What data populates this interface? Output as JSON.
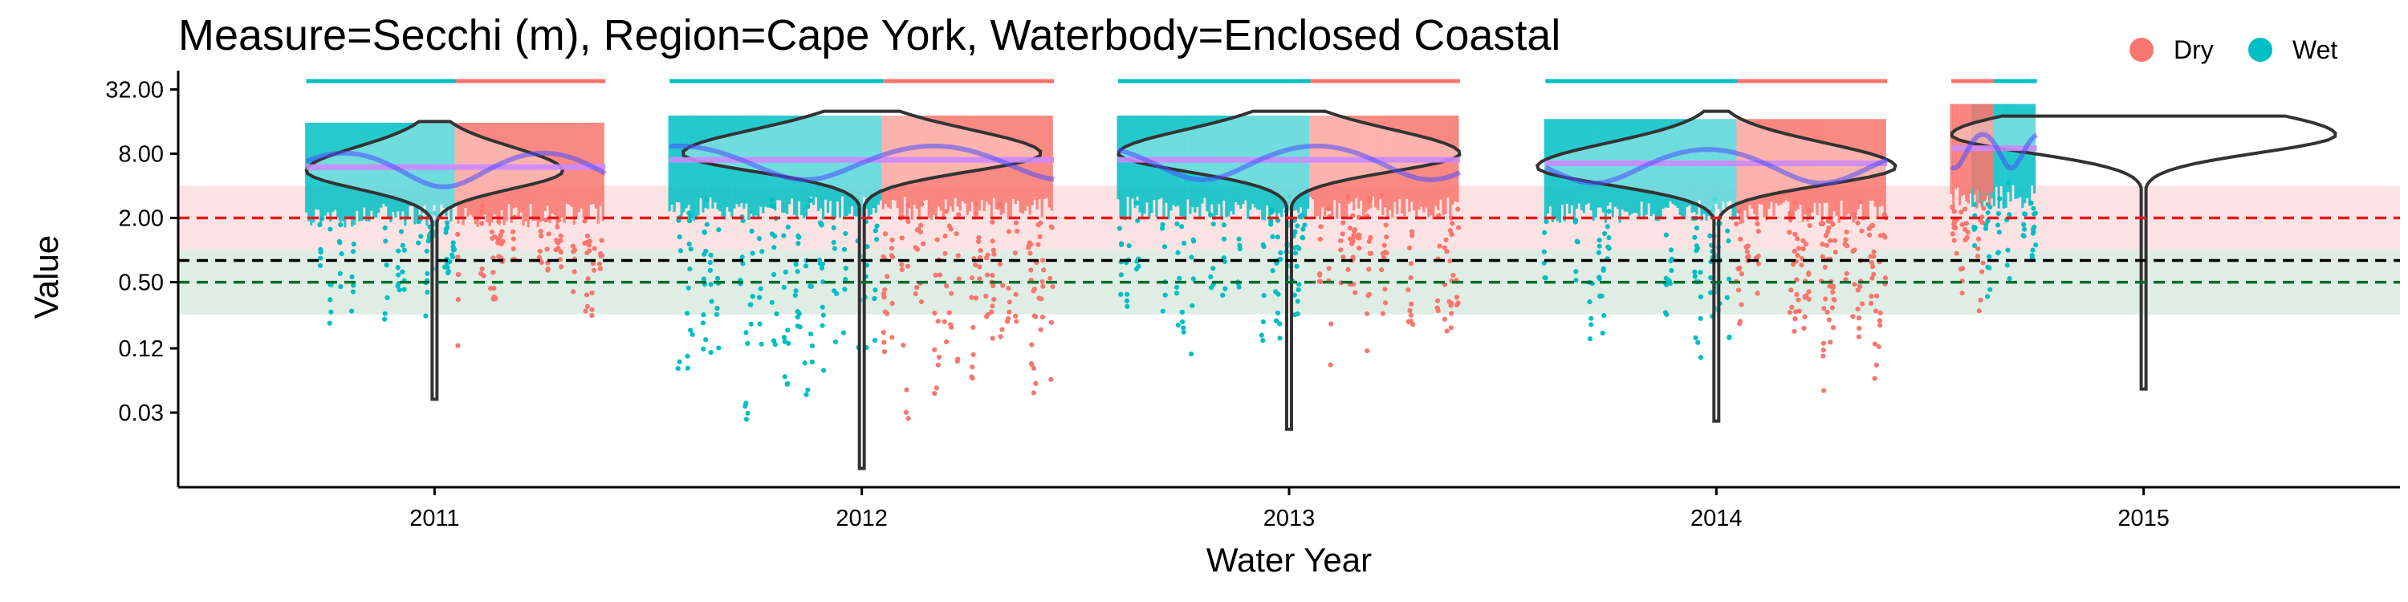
{
  "chart_data": {
    "type": "scatter",
    "title": "Measure=Secchi (m), Region=Cape York, Waterbody=Enclosed Coastal",
    "xlabel": "Water Year",
    "ylabel": "Value",
    "y_scale": "log2",
    "ylim": [
      0.006,
      48
    ],
    "xlim": [
      2010.4,
      2015.6
    ],
    "x_ticks": [
      2011,
      2012,
      2013,
      2014,
      2015
    ],
    "x_tick_labels": [
      "2011",
      "2012",
      "2013",
      "2014",
      "2015"
    ],
    "y_ticks": [
      0.03,
      0.12,
      0.5,
      2,
      8,
      32
    ],
    "y_tick_labels": [
      "0.03",
      "0.12",
      "0.50",
      "2.00",
      "8.00",
      "32.00"
    ],
    "grid": false,
    "legend": {
      "placement": "top-right",
      "entries": [
        {
          "label": "Dry",
          "color": "#F8766D"
        },
        {
          "label": "Wet",
          "color": "#00BFC4"
        }
      ]
    },
    "guidelines": {
      "upper_value": 2.0,
      "upper_color": "#E41A1C",
      "upper_band": [
        1.0,
        4.0
      ],
      "median_value": 0.8,
      "median_color": "#000000",
      "lower_value": 0.5,
      "lower_color": "#006D2C",
      "lower_band": [
        0.25,
        1.0
      ]
    },
    "years": [
      {
        "label": "2011",
        "x": 2011,
        "wet": [
          2010.7,
          2011.05
        ],
        "dry": [
          2011.05,
          2011.4
        ],
        "fit": 6.0,
        "violin_min": 0.04,
        "violin_max": 16,
        "violin_peak": 5.5,
        "violin_width": 0.3
      },
      {
        "label": "2012",
        "x": 2012,
        "wet": [
          2011.55,
          2012.05
        ],
        "dry": [
          2012.05,
          2012.45
        ],
        "fit": 7.0,
        "violin_min": 0.009,
        "violin_max": 20,
        "violin_peak": 8.0,
        "violin_width": 0.42
      },
      {
        "label": "2013",
        "x": 2013,
        "wet": [
          2012.6,
          2013.05
        ],
        "dry": [
          2013.05,
          2013.4
        ],
        "fit": 7.0,
        "violin_min": 0.021,
        "violin_max": 20,
        "violin_peak": 8.0,
        "violin_width": 0.4
      },
      {
        "label": "2014",
        "x": 2014,
        "wet": [
          2013.6,
          2014.05
        ],
        "dry": [
          2014.05,
          2014.4
        ],
        "fit": 6.5,
        "violin_min": 0.025,
        "violin_max": 20,
        "violin_peak": 6.0,
        "violin_width": 0.42
      },
      {
        "label": "2015",
        "x": 2015,
        "wet": [
          2014.6,
          2014.75
        ],
        "dry": [
          2014.55,
          2014.65
        ],
        "fit": 9.0,
        "violin_min": 0.05,
        "violin_max": 18,
        "violin_peak": 12.0,
        "violin_width": 0.45
      }
    ],
    "series_colors": {
      "dry": "#F8766D",
      "wet": "#00BFC4",
      "fit_line": "#4C4CFF",
      "median_line": "#CC88FF",
      "violin_stroke": "#333333"
    }
  }
}
